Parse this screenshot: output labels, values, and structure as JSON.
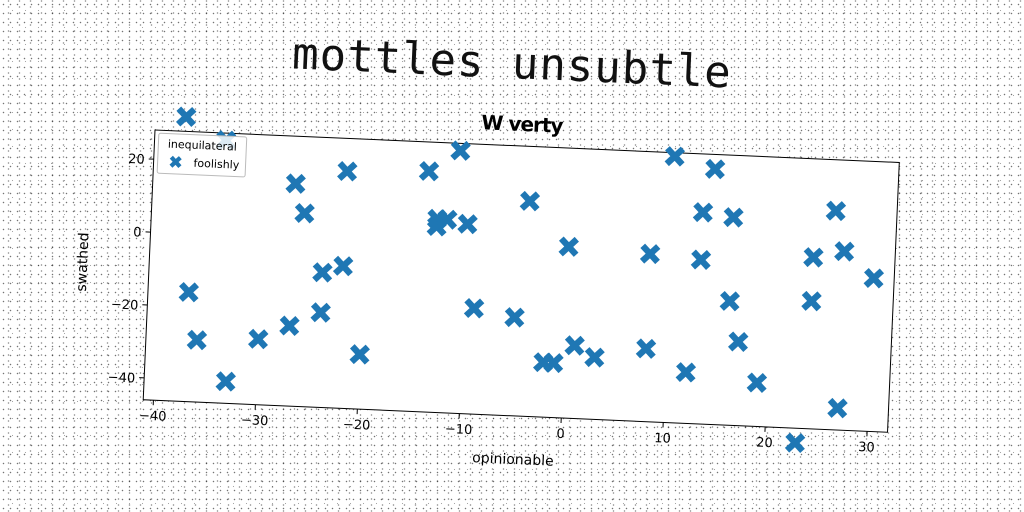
{
  "suptitle": "mottles unsubtle",
  "chart_data": {
    "type": "scatter",
    "title": "W verty",
    "xlabel": "opinionable",
    "ylabel": "swathed",
    "xlim": [
      -41,
      32
    ],
    "ylim": [
      -46,
      28
    ],
    "xticks": [
      -40,
      -30,
      -20,
      -10,
      0,
      10,
      20,
      30
    ],
    "yticks": [
      -40,
      -20,
      0,
      20
    ],
    "xtick_labels": [
      "−40",
      "−30",
      "−20",
      "−10",
      "0",
      "10",
      "20",
      "30"
    ],
    "ytick_labels": [
      "−40",
      "−20",
      "0",
      "20"
    ],
    "grid": false,
    "legend": {
      "title": "inequilateral",
      "placement": "top-left"
    },
    "series": [
      {
        "name": "foolishly",
        "marker": "X",
        "color": "#1f77b4",
        "points": [
          [
            -38,
            32
          ],
          [
            -34,
            26
          ],
          [
            -37,
            -16
          ],
          [
            -36,
            -29
          ],
          [
            -33,
            -40
          ],
          [
            -30,
            -28
          ],
          [
            -27,
            15
          ],
          [
            -26,
            7
          ],
          [
            -27,
            -24
          ],
          [
            -24,
            -20
          ],
          [
            -24,
            -9
          ],
          [
            -22,
            -7
          ],
          [
            -22,
            19
          ],
          [
            -20,
            -31
          ],
          [
            -14,
            20
          ],
          [
            -13,
            7
          ],
          [
            -13,
            5
          ],
          [
            -12,
            7
          ],
          [
            -11,
            26
          ],
          [
            -10,
            6
          ],
          [
            -9,
            -17
          ],
          [
            -5,
            -19
          ],
          [
            -4,
            13
          ],
          [
            -2,
            -31
          ],
          [
            -1,
            -31
          ],
          [
            0,
            1
          ],
          [
            1,
            -26
          ],
          [
            3,
            -29
          ],
          [
            8,
            0
          ],
          [
            8,
            -26
          ],
          [
            10,
            27
          ],
          [
            12,
            -32
          ],
          [
            13,
            -1
          ],
          [
            13,
            12
          ],
          [
            14,
            24
          ],
          [
            16,
            -12
          ],
          [
            16,
            11
          ],
          [
            17,
            -23
          ],
          [
            19,
            -34
          ],
          [
            23,
            -50
          ],
          [
            24,
            -11
          ],
          [
            24,
            1
          ],
          [
            26,
            14
          ],
          [
            27,
            3
          ],
          [
            27,
            -40
          ],
          [
            30,
            -4
          ]
        ]
      }
    ]
  }
}
